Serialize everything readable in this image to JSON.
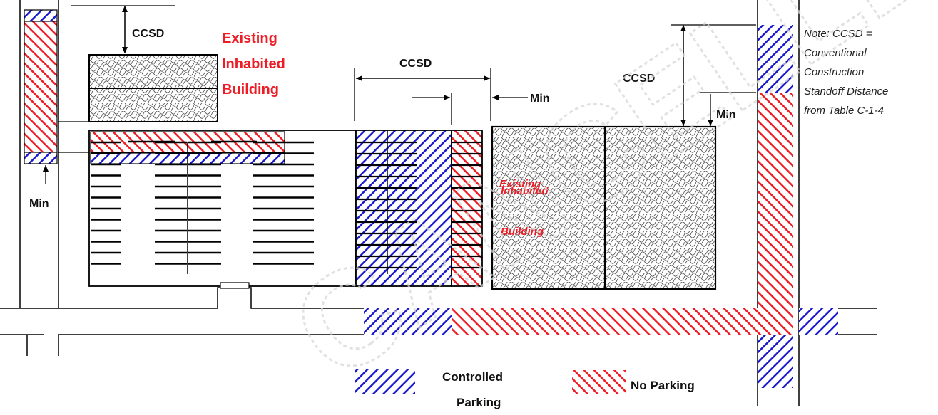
{
  "labels": {
    "ccsd_left": "CCSD",
    "ccsd_middle": "CCSD",
    "ccsd_right": "CCSD",
    "min_left": "Min",
    "min_middle": "Min",
    "min_right": "Min",
    "building_left_line1": "Existing",
    "building_left_line2": "Inhabited",
    "building_left_line3": "Building",
    "building_right_line1": "Existing",
    "building_right_line2": "Inhabited",
    "building_right_line3": "Building"
  },
  "note": {
    "line1": "Note:  CCSD =",
    "line2": "Conventional",
    "line3": "Construction",
    "line4": "Standoff Distance",
    "line5": "from Table C-1-4"
  },
  "legend": {
    "controlled_line1": "Controlled",
    "controlled_line2": "Parking",
    "no_parking": "No Parking"
  },
  "watermark": "CANCELLED",
  "colors": {
    "controlled": "#1a1acc",
    "no_parking": "#ee1c25",
    "line": "#000000"
  }
}
